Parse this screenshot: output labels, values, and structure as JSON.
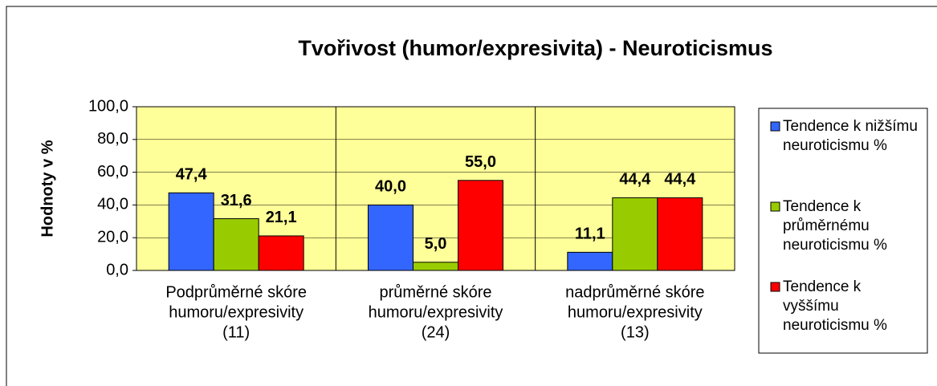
{
  "chart_data": {
    "type": "bar",
    "title": "Tvořivost (humor/expresivita) - Neuroticismus",
    "y_label": "Hodnoty v %",
    "categories": [
      [
        "Podprůměrné skóre",
        "humoru/expresivity",
        "(11)"
      ],
      [
        "průměrné skóre",
        "humoru/expresivity",
        "(24)"
      ],
      [
        "nadprůměrné skóre",
        "humoru/expresivity",
        "(13)"
      ]
    ],
    "series": [
      {
        "name": "Tendence k nižšímu neuroticismu %",
        "color": "#3366ff",
        "values": [
          47.4,
          40.0,
          11.1
        ],
        "value_labels": [
          "47,4",
          "40,0",
          "11,1"
        ]
      },
      {
        "name": "Tendence k průměrnému neuroticismu %",
        "color": "#99cc00",
        "values": [
          31.6,
          5.0,
          44.4
        ],
        "value_labels": [
          "31,6",
          "5,0",
          "44,4"
        ]
      },
      {
        "name": "Tendence k vyššímu neuroticismu %",
        "color": "#ff0000",
        "values": [
          21.1,
          55.0,
          44.4
        ],
        "value_labels": [
          "21,1",
          "55,0",
          "44,4"
        ]
      }
    ],
    "ylim": [
      0,
      100
    ],
    "yticks": [
      {
        "value": 0,
        "label": "0,0"
      },
      {
        "value": 20,
        "label": "20,0"
      },
      {
        "value": 40,
        "label": "40,0"
      },
      {
        "value": 60,
        "label": "60,0"
      },
      {
        "value": 80,
        "label": "80,0"
      },
      {
        "value": 100,
        "label": "100,0"
      }
    ],
    "legend": "right",
    "plot_background": "#ffff99"
  }
}
